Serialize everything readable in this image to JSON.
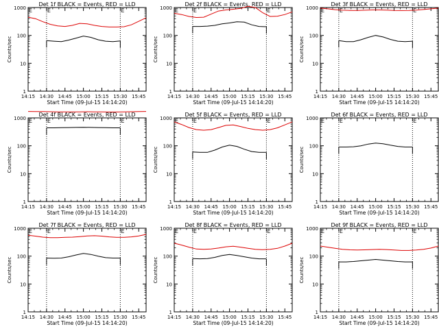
{
  "colors": {
    "events": "#000000",
    "lld": "#dd0000",
    "axis": "#000000"
  },
  "chart_data": [
    {
      "type": "line",
      "title": "Det 1f BLACK = Events, RED = LLD",
      "xlabel": "Start Time (09-Jul-15 14:14:20)",
      "ylabel": "Counts/sec",
      "yscale": "log",
      "ylim": [
        1,
        1000
      ],
      "xlim": [
        14.25,
        15.85
      ],
      "x_ticks": [
        "14:15",
        "14:30",
        "14:45",
        "15:00",
        "15:15",
        "15:30",
        "15:45"
      ],
      "y_ticks": [
        "1",
        "10",
        "100",
        "1000"
      ],
      "vlines": [
        14.5,
        15.5
      ],
      "vline_labels": [
        "E",
        "E"
      ],
      "series": [
        {
          "name": "Events",
          "x": [
            14.5,
            14.6,
            14.7,
            14.8,
            14.9,
            15.0,
            15.1,
            15.2,
            15.3,
            15.4,
            15.5
          ],
          "y": [
            65,
            62,
            60,
            68,
            80,
            95,
            85,
            70,
            62,
            60,
            63
          ]
        },
        {
          "name": "LLD",
          "x": [
            14.25,
            14.35,
            14.45,
            14.55,
            14.65,
            14.75,
            14.85,
            14.95,
            15.05,
            15.15,
            15.25,
            15.35,
            15.45,
            15.55,
            15.65,
            15.75,
            15.85
          ],
          "y": [
            450,
            400,
            310,
            250,
            220,
            210,
            230,
            270,
            260,
            230,
            210,
            200,
            200,
            205,
            240,
            320,
            430
          ]
        }
      ]
    },
    {
      "type": "line",
      "title": "Det 2f BLACK = Events, RED = LLD",
      "xlabel": "Start Time (09-Jul-15 14:14:20)",
      "ylabel": "Counts/sec",
      "yscale": "log",
      "ylim": [
        1,
        1000
      ],
      "xlim": [
        14.25,
        15.85
      ],
      "x_ticks": [
        "14:15",
        "14:30",
        "14:45",
        "15:00",
        "15:15",
        "15:30",
        "15:45"
      ],
      "y_ticks": [
        "1",
        "10",
        "100",
        "1000"
      ],
      "vlines": [
        14.5,
        15.5
      ],
      "vline_labels": [
        "E",
        "E"
      ],
      "series": [
        {
          "name": "Events",
          "x": [
            14.5,
            14.6,
            14.7,
            14.8,
            14.9,
            15.0,
            15.1,
            15.2,
            15.3,
            15.4,
            15.5
          ],
          "y": [
            210,
            210,
            215,
            230,
            260,
            280,
            310,
            300,
            240,
            210,
            205
          ]
        },
        {
          "name": "LLD",
          "x": [
            14.25,
            14.35,
            14.45,
            14.55,
            14.65,
            14.75,
            14.85,
            14.95,
            15.05,
            15.15,
            15.25,
            15.35,
            15.45,
            15.55,
            15.65,
            15.75,
            15.85
          ],
          "y": [
            620,
            560,
            480,
            440,
            450,
            580,
            750,
            820,
            870,
            930,
            1100,
            1000,
            650,
            480,
            490,
            560,
            700
          ]
        }
      ]
    },
    {
      "type": "line",
      "title": "Det 3f BLACK = Events, RED = LLD",
      "xlabel": "Start Time (09-Jul-15 14:14:20)",
      "ylabel": "Counts/sec",
      "yscale": "log",
      "ylim": [
        1,
        1000
      ],
      "xlim": [
        14.25,
        15.85
      ],
      "x_ticks": [
        "14:15",
        "14:30",
        "14:45",
        "15:00",
        "15:15",
        "15:30",
        "15:45"
      ],
      "y_ticks": [
        "1",
        "10",
        "100",
        "1000"
      ],
      "vlines": [
        14.5,
        15.5
      ],
      "vline_labels": [
        "E",
        "E"
      ],
      "series": [
        {
          "name": "Events",
          "x": [
            14.5,
            14.6,
            14.7,
            14.8,
            14.9,
            15.0,
            15.1,
            15.2,
            15.3,
            15.4,
            15.5
          ],
          "y": [
            65,
            60,
            60,
            70,
            85,
            100,
            88,
            72,
            62,
            60,
            62
          ]
        },
        {
          "name": "LLD",
          "x": [
            14.25,
            14.35,
            14.45,
            14.55,
            14.65,
            14.75,
            14.85,
            14.95,
            15.05,
            15.15,
            15.25,
            15.35,
            15.45,
            15.55,
            15.65,
            15.75,
            15.85
          ],
          "y": [
            950,
            900,
            840,
            800,
            790,
            790,
            800,
            820,
            820,
            810,
            790,
            780,
            790,
            810,
            850,
            900,
            950
          ]
        }
      ]
    },
    {
      "type": "line",
      "title": "Det 4f BLACK = Events, RED = LLD",
      "xlabel": "Start Time (09-Jul-15 14:14:20)",
      "ylabel": "Counts/sec",
      "yscale": "log",
      "ylim": [
        1,
        1000
      ],
      "xlim": [
        14.25,
        15.85
      ],
      "x_ticks": [
        "14:15",
        "14:30",
        "14:45",
        "15:00",
        "15:15",
        "15:30",
        "15:45"
      ],
      "y_ticks": [
        "1",
        "10",
        "100",
        "1000"
      ],
      "vlines": [
        14.5,
        15.5
      ],
      "vline_labels": [
        "E",
        "E"
      ],
      "series": [
        {
          "name": "Events",
          "x": [
            14.5,
            14.6,
            14.7,
            14.8,
            14.9,
            15.0,
            15.1,
            15.2,
            15.3,
            15.4,
            15.5
          ],
          "y": [
            440,
            440,
            445,
            450,
            455,
            460,
            455,
            450,
            445,
            440,
            440
          ]
        },
        {
          "name": "LLD",
          "x": [
            14.25,
            14.35,
            14.45,
            14.55,
            14.65,
            14.75,
            14.85,
            14.95,
            15.05,
            15.15,
            15.25,
            15.35,
            15.45,
            15.55,
            15.65,
            15.75,
            15.85
          ],
          "y": [
            1700,
            1690,
            1680,
            1660,
            1650,
            1640,
            1640,
            1650,
            1660,
            1650,
            1640,
            1630,
            1630,
            1640,
            1660,
            1680,
            1700
          ]
        }
      ]
    },
    {
      "type": "line",
      "title": "Det 5f BLACK = Events, RED = LLD",
      "xlabel": "Start Time (09-Jul-15 14:14:20)",
      "ylabel": "Counts/sec",
      "yscale": "log",
      "ylim": [
        1,
        1000
      ],
      "xlim": [
        14.25,
        15.85
      ],
      "x_ticks": [
        "14:15",
        "14:30",
        "14:45",
        "15:00",
        "15:15",
        "15:30",
        "15:45"
      ],
      "y_ticks": [
        "1",
        "10",
        "100",
        "1000"
      ],
      "vlines": [
        14.5,
        15.5
      ],
      "vline_labels": [
        "E",
        "E"
      ],
      "series": [
        {
          "name": "Events",
          "x": [
            14.5,
            14.6,
            14.7,
            14.8,
            14.9,
            15.0,
            15.1,
            15.2,
            15.3,
            15.4,
            15.5
          ],
          "y": [
            60,
            58,
            58,
            70,
            90,
            105,
            95,
            75,
            62,
            58,
            58
          ]
        },
        {
          "name": "LLD",
          "x": [
            14.25,
            14.35,
            14.45,
            14.55,
            14.65,
            14.75,
            14.85,
            14.95,
            15.05,
            15.15,
            15.25,
            15.35,
            15.45,
            15.55,
            15.65,
            15.75,
            15.85
          ],
          "y": [
            720,
            580,
            450,
            380,
            360,
            380,
            450,
            540,
            560,
            490,
            420,
            380,
            360,
            380,
            440,
            560,
            720
          ]
        }
      ]
    },
    {
      "type": "line",
      "title": "Det 6f BLACK = Events, RED = LLD",
      "xlabel": "Start Time (09-Jul-15 14:14:20)",
      "ylabel": "Counts/sec",
      "yscale": "log",
      "ylim": [
        1,
        1000
      ],
      "xlim": [
        14.25,
        15.85
      ],
      "x_ticks": [
        "14:15",
        "14:30",
        "14:45",
        "15:00",
        "15:15",
        "15:30",
        "15:45"
      ],
      "y_ticks": [
        "1",
        "10",
        "100",
        "1000"
      ],
      "vlines": [
        14.5,
        15.5
      ],
      "vline_labels": [
        "E",
        "E"
      ],
      "series": [
        {
          "name": "Events",
          "x": [
            14.5,
            14.6,
            14.7,
            14.8,
            14.9,
            15.0,
            15.1,
            15.2,
            15.3,
            15.4,
            15.5
          ],
          "y": [
            90,
            90,
            92,
            100,
            115,
            125,
            118,
            105,
            95,
            90,
            90
          ]
        }
      ]
    },
    {
      "type": "line",
      "title": "Det 7f BLACK = Events, RED = LLD",
      "xlabel": "Start Time (09-Jul-15 14:14:20)",
      "ylabel": "Counts/sec",
      "yscale": "log",
      "ylim": [
        1,
        1000
      ],
      "xlim": [
        14.25,
        15.85
      ],
      "x_ticks": [
        "14:15",
        "14:30",
        "14:45",
        "15:00",
        "15:15",
        "15:30",
        "15:45"
      ],
      "y_ticks": [
        "1",
        "10",
        "100",
        "1000"
      ],
      "vlines": [
        14.5,
        15.5
      ],
      "vline_labels": [
        "E",
        "E"
      ],
      "series": [
        {
          "name": "Events",
          "x": [
            14.5,
            14.6,
            14.7,
            14.8,
            14.9,
            15.0,
            15.1,
            15.2,
            15.3,
            15.4,
            15.5
          ],
          "y": [
            85,
            84,
            85,
            95,
            110,
            125,
            115,
            100,
            88,
            85,
            85
          ]
        },
        {
          "name": "LLD",
          "x": [
            14.25,
            14.35,
            14.45,
            14.55,
            14.65,
            14.75,
            14.85,
            14.95,
            15.05,
            15.15,
            15.25,
            15.35,
            15.45,
            15.55,
            15.65,
            15.75,
            15.85
          ],
          "y": [
            560,
            520,
            480,
            460,
            460,
            470,
            480,
            500,
            530,
            540,
            520,
            490,
            470,
            470,
            490,
            530,
            600
          ]
        }
      ]
    },
    {
      "type": "line",
      "title": "Det 8f BLACK = Events, RED = LLD",
      "xlabel": "Start Time (09-Jul-15 14:14:20)",
      "ylabel": "Counts/sec",
      "yscale": "log",
      "ylim": [
        1,
        1000
      ],
      "xlim": [
        14.25,
        15.85
      ],
      "x_ticks": [
        "14:15",
        "14:30",
        "14:45",
        "15:00",
        "15:15",
        "15:30",
        "15:45"
      ],
      "y_ticks": [
        "1",
        "10",
        "100",
        "1000"
      ],
      "vlines": [
        14.5,
        15.5
      ],
      "vline_labels": [
        "E",
        "E"
      ],
      "series": [
        {
          "name": "Events",
          "x": [
            14.5,
            14.6,
            14.7,
            14.8,
            14.9,
            15.0,
            15.1,
            15.2,
            15.3,
            15.4,
            15.5
          ],
          "y": [
            82,
            80,
            82,
            90,
            105,
            115,
            105,
            95,
            85,
            80,
            80
          ]
        },
        {
          "name": "LLD",
          "x": [
            14.25,
            14.35,
            14.45,
            14.55,
            14.65,
            14.75,
            14.85,
            14.95,
            15.05,
            15.15,
            15.25,
            15.35,
            15.45,
            15.55,
            15.65,
            15.75,
            15.85
          ],
          "y": [
            290,
            250,
            210,
            180,
            175,
            180,
            195,
            215,
            225,
            210,
            190,
            175,
            170,
            175,
            190,
            230,
            290
          ]
        }
      ]
    },
    {
      "type": "line",
      "title": "Det 9f BLACK = Events, RED = LLD",
      "xlabel": "Start Time (09-Jul-15 14:14:20)",
      "ylabel": "Counts/sec",
      "yscale": "log",
      "ylim": [
        1,
        1000
      ],
      "xlim": [
        14.25,
        15.85
      ],
      "x_ticks": [
        "14:15",
        "14:30",
        "14:45",
        "15:00",
        "15:15",
        "15:30",
        "15:45"
      ],
      "y_ticks": [
        "1",
        "10",
        "100",
        "1000"
      ],
      "vlines": [
        14.5,
        15.5
      ],
      "vline_labels": [
        "E",
        "E"
      ],
      "series": [
        {
          "name": "Events",
          "x": [
            14.5,
            14.6,
            14.7,
            14.8,
            14.9,
            15.0,
            15.1,
            15.2,
            15.3,
            15.4,
            15.5
          ],
          "y": [
            62,
            62,
            64,
            68,
            72,
            76,
            72,
            68,
            64,
            62,
            62
          ]
        },
        {
          "name": "LLD",
          "x": [
            14.25,
            14.35,
            14.45,
            14.55,
            14.65,
            14.75,
            14.85,
            14.95,
            15.05,
            15.15,
            15.25,
            15.35,
            15.45,
            15.55,
            15.65,
            15.75,
            15.85
          ],
          "y": [
            230,
            210,
            190,
            175,
            168,
            165,
            168,
            172,
            175,
            172,
            165,
            160,
            160,
            165,
            175,
            195,
            230
          ]
        }
      ]
    }
  ]
}
